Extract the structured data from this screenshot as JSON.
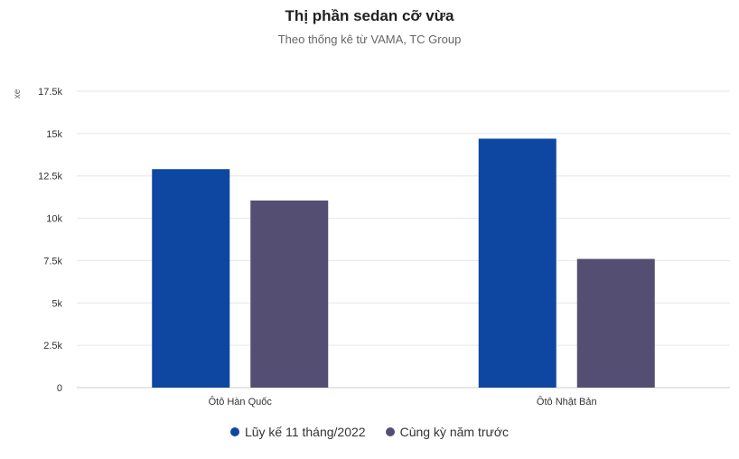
{
  "chart_data": {
    "type": "bar",
    "title": "Thị phần sedan cỡ vừa",
    "subtitle": "Theo thống kê từ VAMA, TC Group",
    "ylabel": "xe",
    "xlabel": "",
    "categories": [
      "Ôtô Hàn Quốc",
      "Ôtô Nhật Bản"
    ],
    "series": [
      {
        "name": "Lũy kế 11 tháng/2022",
        "color": "#0d47a1",
        "values": [
          12900,
          14700
        ]
      },
      {
        "name": "Cùng kỳ năm trước",
        "color": "#544f72",
        "values": [
          11050,
          7600
        ]
      }
    ],
    "ylim": [
      0,
      17500
    ],
    "yticks": [
      0,
      2500,
      5000,
      7500,
      10000,
      12500,
      15000,
      17500
    ],
    "ytick_labels": [
      "0",
      "2.5k",
      "5k",
      "7.5k",
      "10k",
      "12.5k",
      "15k",
      "17.5k"
    ],
    "grid": true,
    "legend_position": "bottom"
  }
}
